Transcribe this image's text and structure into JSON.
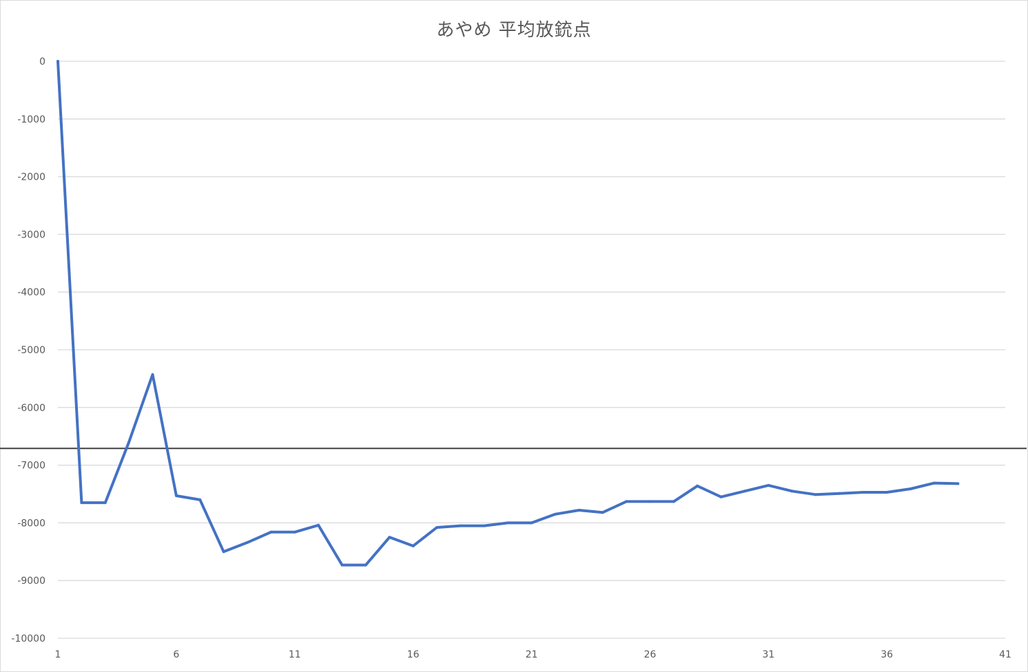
{
  "chart_data": {
    "type": "line",
    "title": "あやめ 平均放銃点",
    "xlabel": "",
    "ylabel": "",
    "xlim": [
      1,
      41
    ],
    "ylim": [
      -10000,
      0
    ],
    "x_ticks": [
      1,
      6,
      11,
      16,
      21,
      26,
      31,
      36,
      41
    ],
    "y_ticks": [
      0,
      -1000,
      -2000,
      -3000,
      -4000,
      -5000,
      -6000,
      -7000,
      -8000,
      -9000,
      -10000
    ],
    "grid": "horizontal",
    "legend": "none",
    "series": [
      {
        "color": "#4472c4",
        "x": [
          1,
          2,
          3,
          4,
          5,
          6,
          7,
          8,
          9,
          10,
          11,
          12,
          13,
          14,
          15,
          16,
          17,
          18,
          19,
          20,
          21,
          22,
          23,
          24,
          25,
          26,
          27,
          28,
          29,
          30,
          31,
          32,
          33,
          34,
          35,
          36,
          37,
          38,
          39
        ],
        "values": [
          0,
          -7650,
          -7650,
          -6600,
          -5430,
          -7530,
          -7600,
          -8500,
          -8340,
          -8160,
          -8160,
          -8040,
          -8730,
          -8730,
          -8250,
          -8400,
          -8080,
          -8050,
          -8050,
          -8000,
          -8000,
          -7850,
          -7780,
          -7820,
          -7630,
          -7630,
          -7630,
          -7360,
          -7550,
          -7450,
          -7350,
          -7450,
          -7510,
          -7490,
          -7470,
          -7470,
          -7410,
          -7310,
          -7320
        ]
      }
    ],
    "reference_line": {
      "y": -6710,
      "color": "#404040"
    }
  }
}
